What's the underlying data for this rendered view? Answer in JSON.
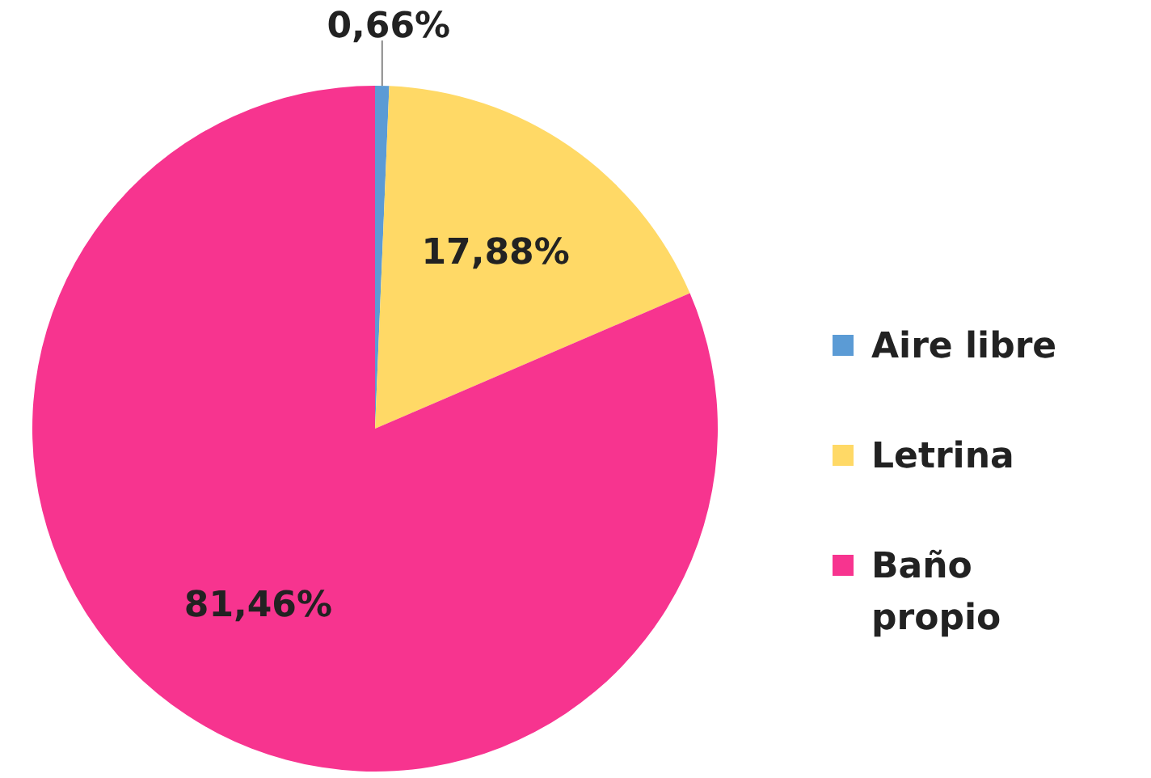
{
  "chart_data": {
    "type": "pie",
    "categories": [
      "Aire libre",
      "Letrina",
      "Baño propio"
    ],
    "values": [
      0.66,
      17.88,
      81.46
    ],
    "colors": [
      "#5b9bd5",
      "#ffd966",
      "#f7348f"
    ],
    "value_labels": [
      "0,66%",
      "17,88%",
      "81,46%"
    ],
    "legend": "right"
  }
}
